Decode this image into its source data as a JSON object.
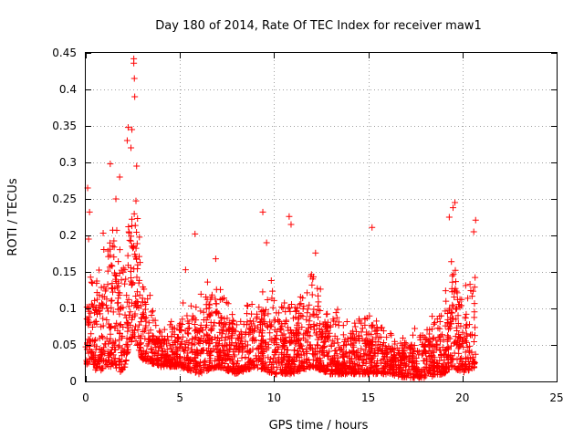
{
  "chart_data": {
    "type": "scatter",
    "title": "Day 180 of 2014, Rate Of TEC Index for receiver maw1",
    "xlabel": "GPS time / hours",
    "ylabel": "ROTI / TECUs",
    "xlim": [
      0,
      25
    ],
    "ylim": [
      0,
      0.45
    ],
    "xticks": [
      0,
      5,
      10,
      15,
      20,
      25
    ],
    "yticks": [
      0,
      0.05,
      0.1,
      0.15,
      0.2,
      0.25,
      0.3,
      0.35,
      0.4,
      0.45
    ],
    "xtick_labels": [
      "0",
      "5",
      "10",
      "15",
      "20",
      "25"
    ],
    "ytick_labels": [
      "0",
      "0.05",
      "0.1",
      "0.15",
      "0.2",
      "0.25",
      "0.3",
      "0.35",
      "0.4",
      "0.45"
    ],
    "grid": true,
    "marker": "+",
    "color": "#ff0000",
    "series": [
      {
        "name": "ROTI",
        "envelope": [
          {
            "x": 0.0,
            "base": 0.02,
            "peak": 0.1
          },
          {
            "x": 0.3,
            "base": 0.03,
            "peak": 0.16
          },
          {
            "x": 0.6,
            "base": 0.01,
            "peak": 0.14
          },
          {
            "x": 1.0,
            "base": 0.02,
            "peak": 0.2
          },
          {
            "x": 1.5,
            "base": 0.02,
            "peak": 0.22
          },
          {
            "x": 2.0,
            "base": 0.01,
            "peak": 0.2
          },
          {
            "x": 2.3,
            "base": 0.05,
            "peak": 0.24
          },
          {
            "x": 2.6,
            "base": 0.06,
            "peak": 0.28
          },
          {
            "x": 3.0,
            "base": 0.03,
            "peak": 0.14
          },
          {
            "x": 4.0,
            "base": 0.02,
            "peak": 0.08
          },
          {
            "x": 5.0,
            "base": 0.02,
            "peak": 0.1
          },
          {
            "x": 6.0,
            "base": 0.01,
            "peak": 0.12
          },
          {
            "x": 7.0,
            "base": 0.02,
            "peak": 0.14
          },
          {
            "x": 8.0,
            "base": 0.01,
            "peak": 0.08
          },
          {
            "x": 9.0,
            "base": 0.02,
            "peak": 0.12
          },
          {
            "x": 10.0,
            "base": 0.01,
            "peak": 0.13
          },
          {
            "x": 11.0,
            "base": 0.01,
            "peak": 0.1
          },
          {
            "x": 12.0,
            "base": 0.02,
            "peak": 0.16
          },
          {
            "x": 13.0,
            "base": 0.01,
            "peak": 0.1
          },
          {
            "x": 14.0,
            "base": 0.01,
            "peak": 0.08
          },
          {
            "x": 15.0,
            "base": 0.01,
            "peak": 0.1
          },
          {
            "x": 16.0,
            "base": 0.01,
            "peak": 0.07
          },
          {
            "x": 17.0,
            "base": 0.005,
            "peak": 0.06
          },
          {
            "x": 18.0,
            "base": 0.005,
            "peak": 0.08
          },
          {
            "x": 19.0,
            "base": 0.01,
            "peak": 0.1
          },
          {
            "x": 19.5,
            "base": 0.02,
            "peak": 0.2
          },
          {
            "x": 20.0,
            "base": 0.01,
            "peak": 0.12
          },
          {
            "x": 20.7,
            "base": 0.02,
            "peak": 0.15
          }
        ],
        "outliers": [
          [
            0.1,
            0.265
          ],
          [
            0.2,
            0.232
          ],
          [
            0.15,
            0.195
          ],
          [
            1.3,
            0.298
          ],
          [
            1.6,
            0.25
          ],
          [
            1.8,
            0.28
          ],
          [
            2.2,
            0.33
          ],
          [
            2.25,
            0.348
          ],
          [
            2.45,
            0.345
          ],
          [
            2.55,
            0.442
          ],
          [
            2.55,
            0.436
          ],
          [
            2.58,
            0.415
          ],
          [
            2.6,
            0.39
          ],
          [
            2.7,
            0.295
          ],
          [
            2.4,
            0.32
          ],
          [
            5.8,
            0.202
          ],
          [
            9.4,
            0.232
          ],
          [
            9.6,
            0.19
          ],
          [
            10.8,
            0.226
          ],
          [
            10.9,
            0.215
          ],
          [
            15.2,
            0.211
          ],
          [
            19.6,
            0.245
          ],
          [
            19.5,
            0.238
          ],
          [
            19.3,
            0.225
          ],
          [
            20.7,
            0.221
          ],
          [
            20.6,
            0.205
          ],
          [
            12.2,
            0.176
          ],
          [
            5.3,
            0.153
          ],
          [
            6.9,
            0.168
          ]
        ]
      }
    ]
  }
}
